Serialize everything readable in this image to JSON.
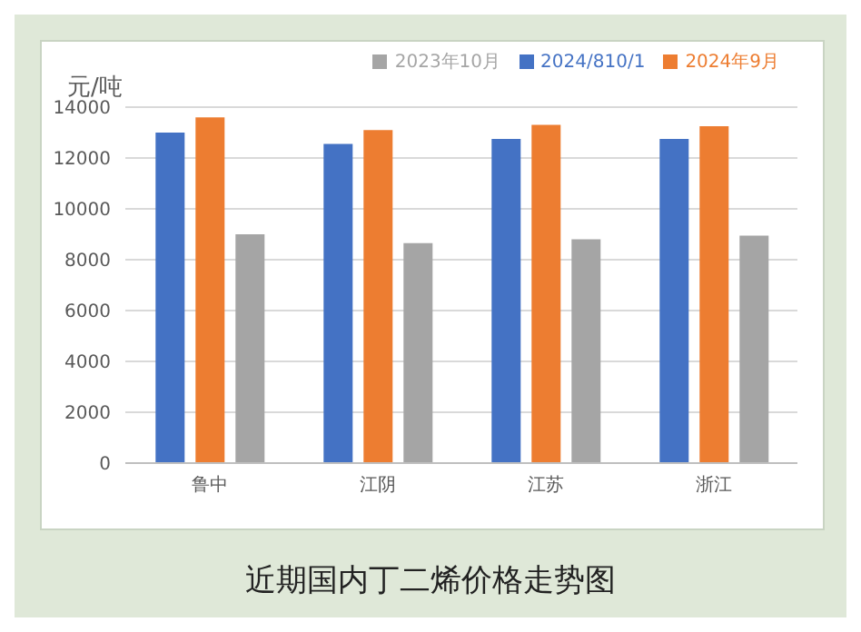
{
  "chart_data": {
    "type": "bar",
    "title": "近期国内丁二烯价格走势图",
    "ylabel": "元/吨",
    "categories": [
      "鲁中",
      "江阴",
      "江苏",
      "浙江"
    ],
    "series": [
      {
        "name": "2024/810/1",
        "color": "#4472c4",
        "values": [
          13000,
          12550,
          12750,
          12750
        ]
      },
      {
        "name": "2024年9月",
        "color": "#ed7d31",
        "values": [
          13600,
          13100,
          13300,
          13250
        ]
      },
      {
        "name": "2023年10月",
        "color": "#a5a5a5",
        "values": [
          9000,
          8650,
          8800,
          8950
        ]
      }
    ],
    "ylim": [
      0,
      14000
    ],
    "yticks": [
      0,
      2000,
      4000,
      6000,
      8000,
      10000,
      12000,
      14000
    ],
    "grid": "y",
    "legend": "top right"
  }
}
